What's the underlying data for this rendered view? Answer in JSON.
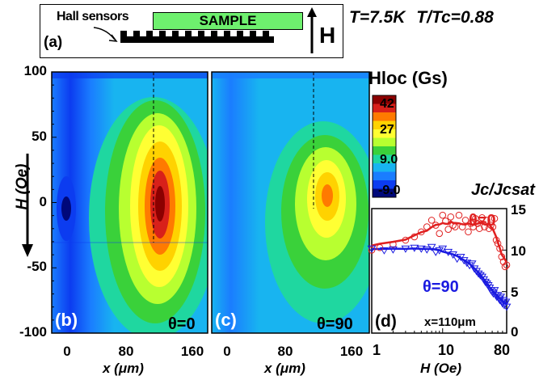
{
  "schematic": {
    "panel_label": "(a)",
    "hall_label": "Hall sensors",
    "sample_label": "SAMPLE",
    "field_label": "H"
  },
  "conditions": {
    "T_text": "T=7.5K",
    "T_ratio_text": "T/Tc=0.88"
  },
  "maps": {
    "panel_b": {
      "label": "(b)",
      "angle": "θ=0"
    },
    "panel_c": {
      "label": "(c)",
      "angle": "θ=90"
    },
    "y_axis_label": "H (Oe)",
    "y_ticks": [
      "100",
      "50",
      "0",
      "-50",
      "-100"
    ],
    "x_axis_label": "x (μm)",
    "x_ticks": [
      "0",
      "80",
      "160"
    ]
  },
  "colorbar": {
    "title": "Hloc (Gs)",
    "labels": [
      "42",
      "27",
      "9.0",
      "-9.0"
    ],
    "colors": [
      "#8b0000",
      "#d8201a",
      "#ff7a00",
      "#ffd200",
      "#ffff33",
      "#b8ff30",
      "#3ad13a",
      "#1fd7a0",
      "#18b4f0",
      "#1a7dff",
      "#0c3cf0",
      "#00087a"
    ]
  },
  "panel_d": {
    "label": "(d)",
    "position_text": "x=110μm",
    "y_title": "Jc/Jcsat",
    "x_axis_label": "H (Oe)",
    "x_ticks": [
      "1",
      "10",
      "80"
    ],
    "y_ticks": [
      "15",
      "10",
      "5",
      "0"
    ]
  },
  "chart_data": {
    "type": "scatter",
    "title": "",
    "xlabel": "H (Oe)",
    "ylabel": "Jc/Jcsat",
    "x_scale": "log",
    "xlim": [
      1,
      80
    ],
    "ylim": [
      0,
      15
    ],
    "annotation": "x=110μm",
    "series": [
      {
        "name": "θ=0",
        "color": "#e02020",
        "marker": "circle",
        "x": [
          1.0,
          1.3,
          2.0,
          3.0,
          4.0,
          5.0,
          6.0,
          7.0,
          8.0,
          9.0,
          10.0,
          11.0,
          12.0,
          13.0,
          14.0,
          15.0,
          17.0,
          19.0,
          21.0,
          23.0,
          25.0,
          27.0,
          29.0,
          31.0,
          33.0,
          36.0,
          39.0,
          42.0,
          45.0,
          48.0,
          51.0,
          54.0,
          57.0,
          60.0,
          64.0,
          68.0,
          72.0,
          76.0,
          80.0
        ],
        "values": [
          10.0,
          10.3,
          10.7,
          11.2,
          11.6,
          12.2,
          12.8,
          13.6,
          13.0,
          12.0,
          14.2,
          13.5,
          12.5,
          14.0,
          13.0,
          12.8,
          14.2,
          12.8,
          13.6,
          12.2,
          13.2,
          12.8,
          13.8,
          13.2,
          12.6,
          13.9,
          12.8,
          13.6,
          12.6,
          13.0,
          12.8,
          13.8,
          11.2,
          10.8,
          10.2,
          9.2,
          8.6,
          8.0,
          8.2
        ]
      },
      {
        "name": "θ=90",
        "color": "#1a1ae0",
        "marker": "triangle-down",
        "x": [
          1.0,
          1.5,
          2.0,
          3.0,
          4.0,
          5.0,
          6.0,
          7.0,
          8.0,
          9.0,
          10.0,
          12.0,
          14.0,
          16.0,
          18.0,
          20.0,
          22.0,
          24.0,
          26.0,
          28.0,
          30.0,
          32.0,
          34.0,
          36.0,
          38.0,
          40.0,
          42.0,
          44.0,
          46.0,
          48.0,
          50.0,
          52.0,
          54.0,
          56.0,
          58.0,
          60.0,
          62.0,
          64.0,
          66.0,
          68.0,
          70.0,
          72.0,
          74.0,
          76.0,
          78.0,
          80.0
        ],
        "values": [
          10.2,
          10.0,
          10.1,
          10.2,
          10.3,
          10.2,
          10.1,
          10.4,
          9.8,
          10.0,
          10.2,
          9.8,
          9.5,
          9.0,
          9.2,
          8.8,
          8.5,
          8.2,
          8.4,
          7.8,
          7.5,
          7.2,
          7.0,
          6.8,
          6.5,
          6.2,
          6.0,
          5.8,
          5.5,
          5.2,
          5.0,
          4.8,
          5.2,
          4.6,
          4.4,
          4.6,
          4.2,
          4.0,
          4.4,
          3.8,
          3.6,
          4.0,
          3.4,
          3.6,
          3.8,
          3.2
        ]
      }
    ]
  }
}
